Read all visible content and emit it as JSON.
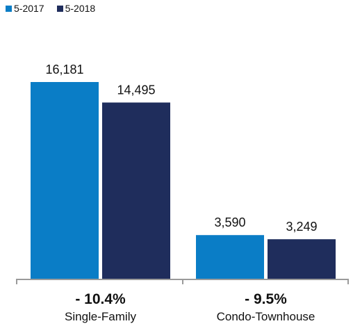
{
  "chart_data": {
    "type": "bar",
    "categories": [
      "Single-Family",
      "Condo-Townhouse"
    ],
    "series": [
      {
        "name": "5-2017",
        "values": [
          16181,
          3590
        ],
        "color": "#0a7dc6"
      },
      {
        "name": "5-2018",
        "values": [
          14495,
          3249
        ],
        "color": "#1f2d5c"
      }
    ],
    "value_labels": [
      [
        "16,181",
        "3,590"
      ],
      [
        "14,495",
        "3,249"
      ]
    ],
    "changes": [
      "- 10.4%",
      "- 9.5%"
    ],
    "legend_position": "top-left",
    "ylim": [
      0,
      20000
    ],
    "grid": false,
    "title": "",
    "xlabel": "",
    "ylabel": ""
  }
}
